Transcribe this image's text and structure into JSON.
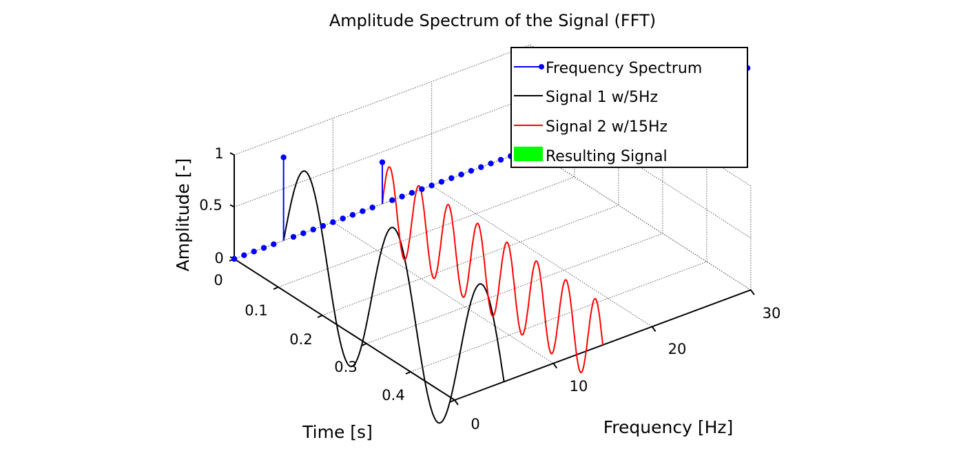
{
  "chart_data": {
    "type": "line",
    "projection": "3d",
    "title": "Amplitude Spectrum of the Signal (FFT)",
    "xlabel": "Frequency [Hz]",
    "ylabel": "Time [s]",
    "zlabel": "Amplitude [-]",
    "xlim": [
      0,
      30
    ],
    "ylim": [
      0,
      0.5
    ],
    "zlim": [
      0,
      1
    ],
    "xticks": [
      "0",
      "10",
      "20",
      "30"
    ],
    "yticks": [
      "0",
      "0.1",
      "0.2",
      "0.3",
      "0.4"
    ],
    "zticks": [
      "0",
      "0.5",
      "1"
    ],
    "grid": true,
    "legend_position": "top-right",
    "colors": {
      "spectrum": "#0000ff",
      "signal1": "#000000",
      "signal2": "#ff0000",
      "resulting": "#00ff00"
    },
    "series": [
      {
        "name": "Frequency Spectrum",
        "kind": "stem",
        "frequency_range": [
          0,
          52
        ],
        "frequency_step": 1,
        "peaks": [
          {
            "frequency": 5,
            "amplitude": 0.8
          },
          {
            "frequency": 15,
            "amplitude": 0.4
          }
        ]
      },
      {
        "name": "Signal 1 w/5Hz",
        "kind": "sine",
        "frequency": 5,
        "amplitude": 0.8,
        "plane_frequency": 5,
        "time_range": [
          0,
          0.5
        ]
      },
      {
        "name": "Signal 2 w/15Hz",
        "kind": "sine",
        "frequency": 15,
        "amplitude": 0.4,
        "plane_frequency": 15,
        "time_range": [
          0,
          0.5
        ]
      },
      {
        "name": "Resulting Signal",
        "kind": "patch"
      }
    ]
  }
}
